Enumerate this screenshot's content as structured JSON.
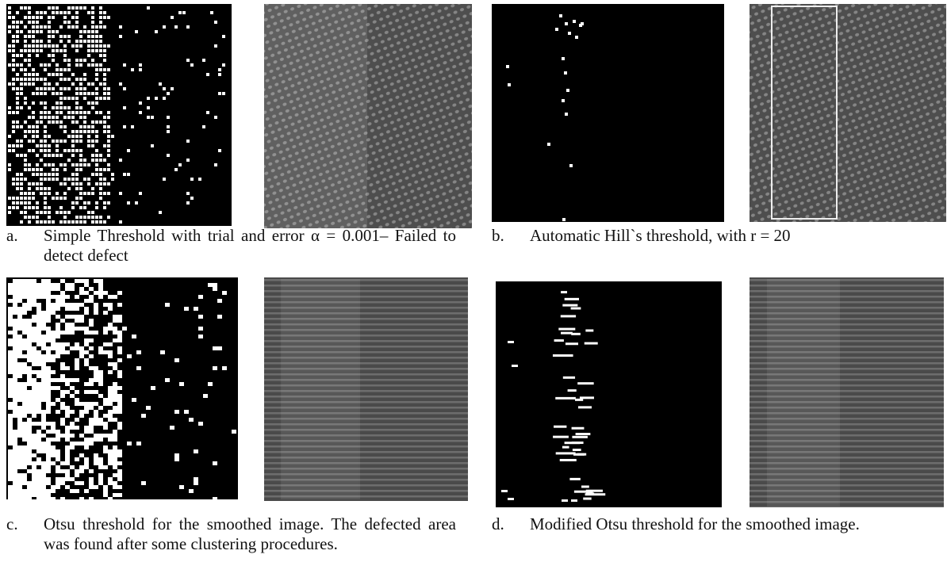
{
  "panels": [
    {
      "label": "a.",
      "caption": "Simple Threshold with trial and error α = 0.001– Failed to detect defect"
    },
    {
      "label": "b.",
      "caption": "Automatic Hill`s threshold, with r = 20"
    },
    {
      "label": "c.",
      "caption": "Otsu threshold for the smoothed image. The defected area was found after some clustering procedures."
    },
    {
      "label": "d.",
      "caption": "Modified Otsu threshold for the smoothed image."
    }
  ]
}
